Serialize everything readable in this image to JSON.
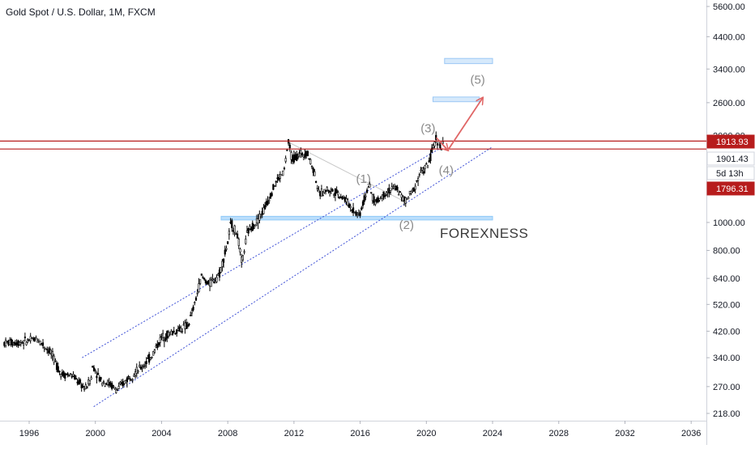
{
  "symbol_title": "Gold Spot / U.S. Dollar, 1M, FXCM",
  "chart_data": {
    "type": "candlestick",
    "title": "Gold Spot / U.S. Dollar, 1M, FXCM",
    "x_ticks": [
      "1996",
      "2000",
      "2004",
      "2008",
      "2012",
      "2016",
      "2020",
      "2024",
      "2028",
      "2032",
      "2036"
    ],
    "y_scale": "log",
    "y_ticks": [
      "5600.00",
      "4400.00",
      "3400.00",
      "2600.00",
      "2000.00",
      "1000.00",
      "800.00",
      "640.00",
      "520.00",
      "420.00",
      "340.00",
      "270.00",
      "218.00"
    ],
    "price_badges": [
      {
        "label": "1913.93",
        "value": 1913.93,
        "color": "#b71c1c"
      },
      {
        "label": "1901.43",
        "value": 1901.43,
        "color": "#ffffff"
      },
      {
        "label": "5d 13h",
        "value": null,
        "color": "#ffffff"
      },
      {
        "label": "1796.31",
        "value": 1796.31,
        "color": "#b71c1c"
      }
    ],
    "resistance_lines": [
      1913.93,
      1796.31
    ],
    "support_zone": {
      "from_year": 2007.6,
      "to_year": 2024.0,
      "low": 1020,
      "high": 1050
    },
    "target_zones": [
      {
        "from_year": 2021.1,
        "to_year": 2024.0,
        "low": 3550,
        "high": 3700
      },
      {
        "from_year": 2020.4,
        "to_year": 2023.2,
        "low": 2620,
        "high": 2720
      }
    ],
    "wave_labels": [
      {
        "text": "(1)",
        "year": 2016.2,
        "price": 1370
      },
      {
        "text": "(2)",
        "year": 2018.8,
        "price": 950
      },
      {
        "text": "(3)",
        "year": 2020.1,
        "price": 2050
      },
      {
        "text": "(4)",
        "year": 2021.2,
        "price": 1470
      },
      {
        "text": "(5)",
        "year": 2023.1,
        "price": 3020
      }
    ],
    "watermark": "FOREXNESS",
    "price_path": [
      [
        1994.5,
        383
      ],
      [
        1995.5,
        385
      ],
      [
        1996.5,
        395
      ],
      [
        1997.3,
        355
      ],
      [
        1997.9,
        300
      ],
      [
        1998.6,
        295
      ],
      [
        1999.4,
        265
      ],
      [
        1999.75,
        290
      ],
      [
        1999.85,
        320
      ],
      [
        2000.3,
        285
      ],
      [
        2000.9,
        275
      ],
      [
        2001.3,
        262
      ],
      [
        2002.0,
        290
      ],
      [
        2002.8,
        315
      ],
      [
        2003.4,
        345
      ],
      [
        2004.0,
        400
      ],
      [
        2004.8,
        420
      ],
      [
        2005.6,
        440
      ],
      [
        2006.0,
        520
      ],
      [
        2006.4,
        650
      ],
      [
        2006.9,
        610
      ],
      [
        2007.5,
        665
      ],
      [
        2008.0,
        850
      ],
      [
        2008.2,
        1000
      ],
      [
        2008.6,
        900
      ],
      [
        2008.85,
        720
      ],
      [
        2009.2,
        930
      ],
      [
        2009.7,
        1000
      ],
      [
        2010.2,
        1110
      ],
      [
        2010.9,
        1380
      ],
      [
        2011.4,
        1500
      ],
      [
        2011.65,
        1900
      ],
      [
        2011.9,
        1650
      ],
      [
        2012.3,
        1720
      ],
      [
        2012.8,
        1750
      ],
      [
        2013.3,
        1450
      ],
      [
        2013.5,
        1250
      ],
      [
        2014.0,
        1300
      ],
      [
        2014.5,
        1280
      ],
      [
        2015.0,
        1220
      ],
      [
        2015.6,
        1100
      ],
      [
        2015.95,
        1060
      ],
      [
        2016.5,
        1340
      ],
      [
        2016.9,
        1170
      ],
      [
        2017.6,
        1280
      ],
      [
        2018.2,
        1320
      ],
      [
        2018.7,
        1180
      ],
      [
        2019.2,
        1290
      ],
      [
        2019.6,
        1480
      ],
      [
        2020.1,
        1580
      ],
      [
        2020.6,
        1965
      ],
      [
        2020.9,
        1800
      ],
      [
        2021.0,
        1860
      ]
    ],
    "trend_channel": [
      {
        "from": [
          1999.2,
          340
        ],
        "to": [
          2021.0,
          1830
        ]
      },
      {
        "from": [
          1999.9,
          230
        ],
        "to": [
          2024.0,
          1830
        ]
      }
    ],
    "arrows": [
      {
        "from": [
          2020.6,
          1965
        ],
        "to": [
          2021.3,
          1780
        ]
      },
      {
        "from": [
          2021.3,
          1780
        ],
        "to": [
          2023.4,
          2700
        ]
      }
    ],
    "x_range": [
      1994.4,
      2037.2
    ],
    "y_range": [
      205,
      6000
    ]
  }
}
